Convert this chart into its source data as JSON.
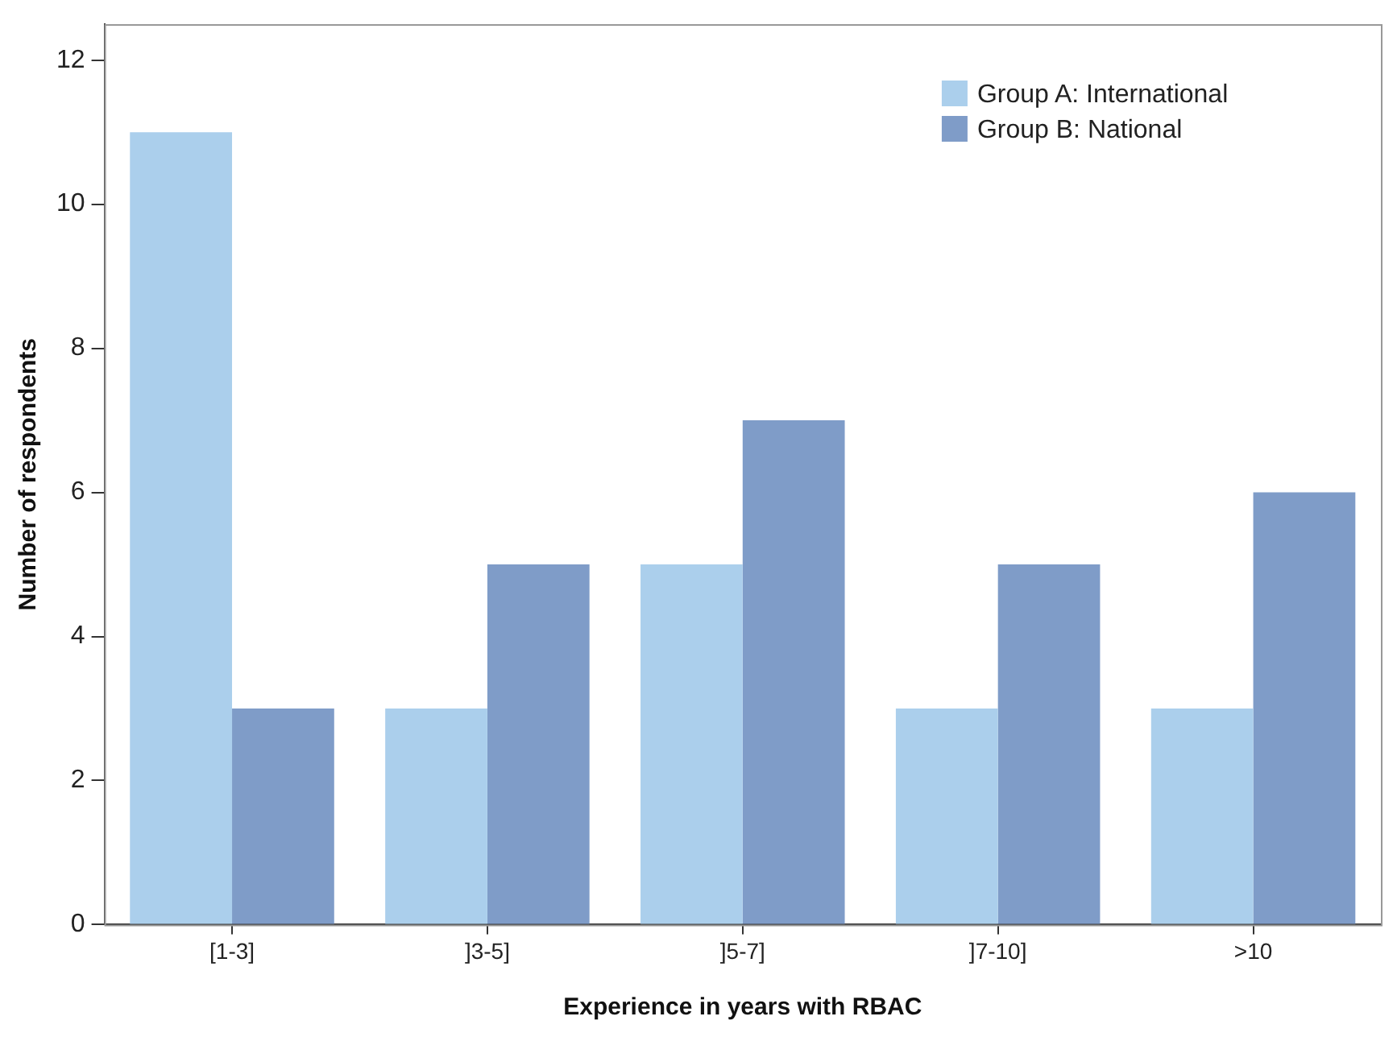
{
  "chart_data": {
    "type": "bar",
    "xlabel": "Experience in years with RBAC",
    "ylabel": "Number of respondents",
    "categories": [
      "[1-3]",
      "]3-5]",
      "]5-7]",
      "]7-10]",
      ">10"
    ],
    "series": [
      {
        "name": "Group A: International",
        "color": "#abcfec",
        "values": [
          11,
          3,
          5,
          3,
          3
        ]
      },
      {
        "name": "Group B: National",
        "color": "#7f9cc8",
        "values": [
          3,
          5,
          7,
          5,
          6
        ]
      }
    ],
    "ylim": [
      0,
      12.5
    ],
    "yticks": [
      0,
      2,
      4,
      6,
      8,
      10,
      12
    ],
    "grid": false,
    "legend": "top right"
  }
}
